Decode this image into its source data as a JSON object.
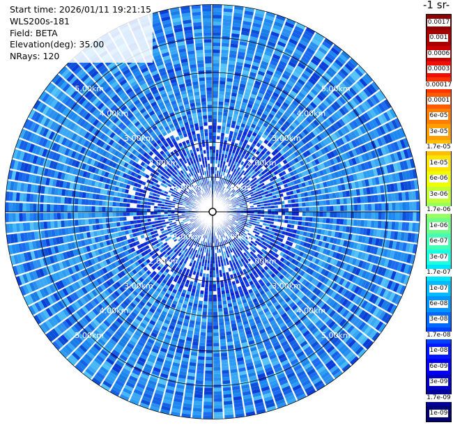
{
  "info": {
    "start_time": "Start time: 2026/01/11 19:21:15",
    "instrument": "WLS200s-181",
    "field": "Field: BETA",
    "elevation": "Elevation(deg): 35.00",
    "nrays": "NRays: 120"
  },
  "colorbar": {
    "unit_title": "-1 sr-",
    "levels": [
      {
        "label": "0.0017",
        "color": "#8b0000"
      },
      {
        "label": "0.001",
        "color": "#a80000"
      },
      {
        "label": "0.0006",
        "color": "#cc0000"
      },
      {
        "label": "0.0003",
        "color": "#ee1000"
      },
      {
        "label": "0.00017",
        "color": "#ff3300"
      },
      {
        "label": "0.0001",
        "color": "#ff5a00"
      },
      {
        "label": "6e-05",
        "color": "#ff7e00"
      },
      {
        "label": "3e-05",
        "color": "#ff9f00"
      },
      {
        "label": "1.7e-05",
        "color": "#ffbf00"
      },
      {
        "label": "1e-05",
        "color": "#ffe400"
      },
      {
        "label": "6e-06",
        "color": "#eeff00"
      },
      {
        "label": "3e-06",
        "color": "#c2ff33"
      },
      {
        "label": "1.7e-06",
        "color": "#98ff60"
      },
      {
        "label": "1e-06",
        "color": "#70ff88"
      },
      {
        "label": "6e-07",
        "color": "#44ffb4"
      },
      {
        "label": "3e-07",
        "color": "#1affdd"
      },
      {
        "label": "1.7e-07",
        "color": "#00e4f8"
      },
      {
        "label": "1e-07",
        "color": "#00bcff"
      },
      {
        "label": "6e-08",
        "color": "#0094ff"
      },
      {
        "label": "3e-08",
        "color": "#006aff"
      },
      {
        "label": "1.7e-08",
        "color": "#0040ff"
      },
      {
        "label": "1e-08",
        "color": "#0018ff"
      },
      {
        "label": "6e-09",
        "color": "#0000f0"
      },
      {
        "label": "3e-09",
        "color": "#0000c4"
      },
      {
        "label": "1.7e-09",
        "color": "#000098"
      },
      {
        "label": "1e-09",
        "color": "#00006e"
      }
    ]
  },
  "chart_data": {
    "type": "heatmap",
    "projection": "polar (PPI scan)",
    "n_rays": 120,
    "elevation_deg": 35.0,
    "field": "BETA",
    "range_rings_km": [
      1,
      2,
      3,
      4,
      5
    ],
    "ring_labels": [
      "1.00km",
      "2.00km",
      "3.00km",
      "4.00km",
      "5.00km"
    ],
    "max_range_km": 5.95,
    "color_scale": "log",
    "value_range": [
      1e-09,
      0.0017
    ],
    "dominant_value_range": [
      3e-08,
      1.7e-07
    ],
    "grid": true
  }
}
